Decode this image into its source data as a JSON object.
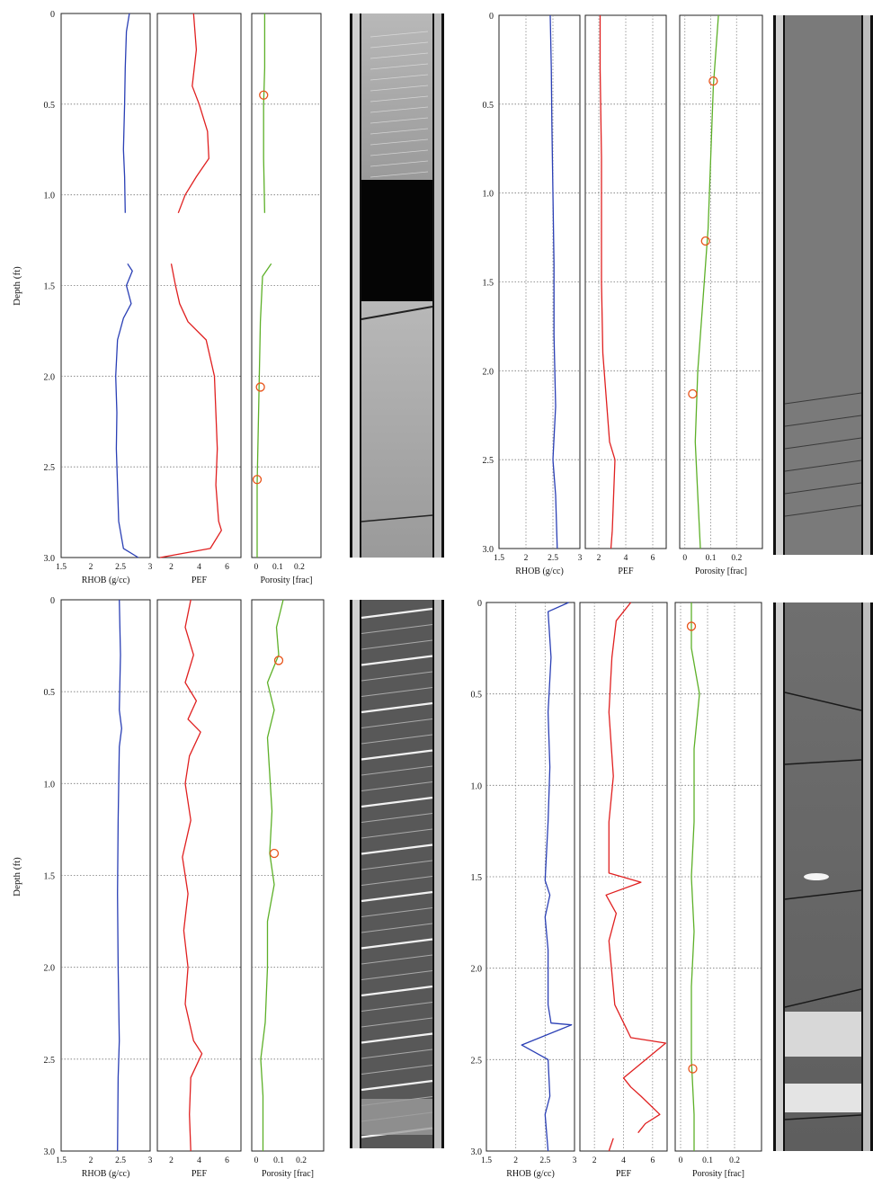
{
  "figure": {
    "panels": 4
  },
  "chart_data": [
    {
      "type": "line",
      "panel": "top-left",
      "ylabel": "Depth (ft)",
      "depth_ticks": [
        "0",
        "0.5",
        "1.0",
        "1.5",
        "2.0",
        "2.5",
        "3.0"
      ],
      "ylim": [
        0,
        3.0
      ],
      "grid": "dotted horizontal at 0.5 ft",
      "tracks": [
        {
          "name": "RHOB (g/cc)",
          "color": "#2a3fb5",
          "xlim": [
            1.5,
            3
          ],
          "ticks": [
            "1.5",
            "2",
            "2.5",
            "3"
          ],
          "segments": [
            [
              [
                2.65,
                0
              ],
              [
                2.6,
                0.1
              ],
              [
                2.58,
                0.3
              ],
              [
                2.57,
                0.5
              ],
              [
                2.55,
                0.75
              ],
              [
                2.57,
                0.9
              ],
              [
                2.58,
                1.1
              ]
            ],
            [
              [
                2.62,
                1.38
              ],
              [
                2.7,
                1.42
              ],
              [
                2.6,
                1.5
              ],
              [
                2.68,
                1.6
              ],
              [
                2.55,
                1.68
              ],
              [
                2.45,
                1.8
              ],
              [
                2.42,
                2.0
              ],
              [
                2.44,
                2.2
              ],
              [
                2.43,
                2.4
              ],
              [
                2.45,
                2.6
              ],
              [
                2.47,
                2.8
              ],
              [
                2.55,
                2.95
              ],
              [
                2.8,
                3.0
              ]
            ]
          ]
        },
        {
          "name": "PEF",
          "color": "#e02020",
          "xlim": [
            1,
            7
          ],
          "ticks": [
            "2",
            "4",
            "6"
          ],
          "segments": [
            [
              [
                3.6,
                0
              ],
              [
                3.8,
                0.2
              ],
              [
                3.5,
                0.4
              ],
              [
                4.0,
                0.5
              ],
              [
                4.6,
                0.65
              ],
              [
                4.7,
                0.8
              ],
              [
                3.8,
                0.9
              ],
              [
                3.0,
                1.0
              ],
              [
                2.5,
                1.1
              ]
            ],
            [
              [
                2.0,
                1.38
              ],
              [
                2.3,
                1.5
              ],
              [
                2.6,
                1.6
              ],
              [
                3.2,
                1.7
              ],
              [
                4.5,
                1.8
              ],
              [
                5.1,
                2.0
              ],
              [
                5.2,
                2.2
              ],
              [
                5.3,
                2.4
              ],
              [
                5.2,
                2.6
              ],
              [
                5.4,
                2.8
              ],
              [
                5.6,
                2.85
              ],
              [
                4.8,
                2.95
              ],
              [
                1.2,
                3.0
              ]
            ]
          ]
        },
        {
          "name": "Porosity [frac]",
          "color": "#5db028",
          "xlim": [
            -0.02,
            0.3
          ],
          "ticks": [
            "0",
            "0.1",
            "0.2"
          ],
          "segments": [
            [
              [
                0.04,
                0
              ],
              [
                0.04,
                0.3
              ],
              [
                0.035,
                0.5
              ],
              [
                0.035,
                0.8
              ],
              [
                0.04,
                1.1
              ]
            ],
            [
              [
                0.07,
                1.38
              ],
              [
                0.03,
                1.45
              ],
              [
                0.02,
                1.7
              ],
              [
                0.015,
                2.0
              ],
              [
                0.01,
                2.3
              ],
              [
                0.005,
                2.6
              ],
              [
                0.005,
                3.0
              ]
            ]
          ],
          "markers": [
            [
              0.035,
              0.45
            ],
            [
              0.02,
              2.06
            ],
            [
              0.005,
              2.57
            ]
          ]
        }
      ]
    },
    {
      "type": "line",
      "panel": "top-right",
      "ylabel": "",
      "depth_ticks": [
        "0",
        "0.5",
        "1.0",
        "1.5",
        "2.0",
        "2.5",
        "3.0"
      ],
      "ylim": [
        0,
        3.0
      ],
      "grid": "dotted horizontal at 0.5 ft and vertical",
      "tracks": [
        {
          "name": "RHOB (g/cc)",
          "color": "#2a3fb5",
          "xlim": [
            1.5,
            3
          ],
          "ticks": [
            "1.5",
            "2",
            "2.5",
            "3"
          ],
          "segments": [
            [
              [
                2.45,
                0
              ],
              [
                2.47,
                0.3
              ],
              [
                2.48,
                0.6
              ],
              [
                2.5,
                1.0
              ],
              [
                2.52,
                1.4
              ],
              [
                2.52,
                1.8
              ],
              [
                2.55,
                2.2
              ],
              [
                2.5,
                2.5
              ],
              [
                2.55,
                2.7
              ],
              [
                2.58,
                3.0
              ]
            ]
          ]
        },
        {
          "name": "PEF",
          "color": "#e02020",
          "xlim": [
            1,
            7
          ],
          "ticks": [
            "2",
            "4",
            "6"
          ],
          "segments": [
            [
              [
                2.1,
                0
              ],
              [
                2.1,
                0.3
              ],
              [
                2.2,
                0.8
              ],
              [
                2.2,
                1.5
              ],
              [
                2.3,
                1.9
              ],
              [
                2.6,
                2.2
              ],
              [
                2.8,
                2.4
              ],
              [
                3.2,
                2.5
              ],
              [
                3.1,
                2.7
              ],
              [
                3.0,
                2.9
              ],
              [
                2.9,
                3.0
              ]
            ]
          ]
        },
        {
          "name": "Porosity [frac]",
          "color": "#5db028",
          "xlim": [
            -0.02,
            0.3
          ],
          "ticks": [
            "0",
            "0.1",
            "0.2"
          ],
          "segments": [
            [
              [
                0.13,
                0
              ],
              [
                0.11,
                0.4
              ],
              [
                0.1,
                0.8
              ],
              [
                0.09,
                1.2
              ],
              [
                0.07,
                1.6
              ],
              [
                0.05,
                2.0
              ],
              [
                0.04,
                2.4
              ],
              [
                0.05,
                2.7
              ],
              [
                0.06,
                3.0
              ]
            ]
          ],
          "markers": [
            [
              0.11,
              0.37
            ],
            [
              0.08,
              1.27
            ],
            [
              0.03,
              2.13
            ]
          ]
        }
      ]
    },
    {
      "type": "line",
      "panel": "bottom-left",
      "ylabel": "Depth (ft)",
      "depth_ticks": [
        "0",
        "0.5",
        "1.0",
        "1.5",
        "2.0",
        "2.5",
        "3.0"
      ],
      "ylim": [
        0,
        3.0
      ],
      "grid": "dotted horizontal at 0.5 ft",
      "tracks": [
        {
          "name": "RHOB (g/cc)",
          "color": "#2a3fb5",
          "xlim": [
            1.5,
            3
          ],
          "ticks": [
            "1.5",
            "2",
            "2.5",
            "3"
          ],
          "segments": [
            [
              [
                2.48,
                0
              ],
              [
                2.5,
                0.3
              ],
              [
                2.48,
                0.6
              ],
              [
                2.52,
                0.7
              ],
              [
                2.48,
                0.8
              ],
              [
                2.46,
                1.2
              ],
              [
                2.45,
                1.6
              ],
              [
                2.46,
                2.0
              ],
              [
                2.48,
                2.4
              ],
              [
                2.46,
                2.6
              ],
              [
                2.45,
                3.0
              ]
            ]
          ]
        },
        {
          "name": "PEF",
          "color": "#e02020",
          "xlim": [
            1,
            7
          ],
          "ticks": [
            "2",
            "4",
            "6"
          ],
          "segments": [
            [
              [
                3.4,
                0
              ],
              [
                3.0,
                0.15
              ],
              [
                3.6,
                0.3
              ],
              [
                3.0,
                0.45
              ],
              [
                3.8,
                0.55
              ],
              [
                3.2,
                0.65
              ],
              [
                4.1,
                0.72
              ],
              [
                3.3,
                0.85
              ],
              [
                3.0,
                1.0
              ],
              [
                3.4,
                1.2
              ],
              [
                2.8,
                1.4
              ],
              [
                3.2,
                1.6
              ],
              [
                2.9,
                1.8
              ],
              [
                3.2,
                2.0
              ],
              [
                3.0,
                2.2
              ],
              [
                3.6,
                2.4
              ],
              [
                4.2,
                2.47
              ],
              [
                3.4,
                2.6
              ],
              [
                3.3,
                2.8
              ],
              [
                3.4,
                3.0
              ]
            ]
          ]
        },
        {
          "name": "Porosity [frac]",
          "color": "#5db028",
          "xlim": [
            -0.02,
            0.3
          ],
          "ticks": [
            "0",
            "0.1",
            "0.2"
          ],
          "segments": [
            [
              [
                0.12,
                0
              ],
              [
                0.09,
                0.15
              ],
              [
                0.1,
                0.3
              ],
              [
                0.05,
                0.45
              ],
              [
                0.08,
                0.6
              ],
              [
                0.05,
                0.75
              ],
              [
                0.06,
                0.95
              ],
              [
                0.07,
                1.15
              ],
              [
                0.06,
                1.38
              ],
              [
                0.08,
                1.55
              ],
              [
                0.05,
                1.75
              ],
              [
                0.05,
                2.0
              ],
              [
                0.04,
                2.3
              ],
              [
                0.02,
                2.5
              ],
              [
                0.03,
                2.7
              ],
              [
                0.03,
                3.0
              ]
            ]
          ],
          "markers": [
            [
              0.1,
              0.33
            ],
            [
              0.08,
              1.38
            ]
          ]
        }
      ]
    },
    {
      "type": "line",
      "panel": "bottom-right",
      "ylabel": "",
      "depth_ticks": [
        "0",
        "0.5",
        "1.0",
        "1.5",
        "2.0",
        "2.5",
        "3.0"
      ],
      "ylim": [
        0,
        3.0
      ],
      "grid": "dotted horizontal at 0.5 ft and vertical",
      "tracks": [
        {
          "name": "RHOB (g/cc)",
          "color": "#2a3fb5",
          "xlim": [
            1.5,
            3
          ],
          "ticks": [
            "1.5",
            "2",
            "2.5",
            "3"
          ],
          "segments": [
            [
              [
                2.9,
                0
              ],
              [
                2.55,
                0.05
              ],
              [
                2.6,
                0.3
              ],
              [
                2.55,
                0.6
              ],
              [
                2.58,
                0.9
              ],
              [
                2.55,
                1.2
              ],
              [
                2.5,
                1.52
              ],
              [
                2.58,
                1.6
              ],
              [
                2.5,
                1.72
              ],
              [
                2.55,
                1.9
              ],
              [
                2.55,
                2.2
              ],
              [
                2.6,
                2.3
              ],
              [
                2.95,
                2.31
              ],
              [
                2.1,
                2.42
              ],
              [
                2.55,
                2.5
              ],
              [
                2.58,
                2.7
              ],
              [
                2.5,
                2.8
              ],
              [
                2.55,
                3.0
              ]
            ]
          ]
        },
        {
          "name": "PEF",
          "color": "#e02020",
          "xlim": [
            1,
            7
          ],
          "ticks": [
            "2",
            "4",
            "6"
          ],
          "segments": [
            [
              [
                4.5,
                0
              ],
              [
                3.5,
                0.1
              ],
              [
                3.2,
                0.3
              ],
              [
                3.0,
                0.6
              ],
              [
                3.3,
                0.95
              ],
              [
                3.0,
                1.2
              ],
              [
                3.0,
                1.48
              ],
              [
                5.2,
                1.53
              ],
              [
                2.8,
                1.6
              ],
              [
                3.5,
                1.7
              ],
              [
                3.0,
                1.85
              ],
              [
                3.4,
                2.2
              ],
              [
                4.5,
                2.38
              ],
              [
                6.9,
                2.41
              ],
              [
                4.0,
                2.6
              ],
              [
                4.5,
                2.65
              ],
              [
                5.2,
                2.7
              ],
              [
                6.5,
                2.8
              ],
              [
                5.5,
                2.85
              ],
              [
                5.0,
                2.9
              ]
            ],
            [
              [
                3.3,
                2.93
              ],
              [
                3.0,
                3.0
              ]
            ]
          ]
        },
        {
          "name": "Porosity [frac]",
          "color": "#5db028",
          "xlim": [
            -0.02,
            0.3
          ],
          "ticks": [
            "0",
            "0.1",
            "0.2"
          ],
          "segments": [
            [
              [
                0.04,
                0
              ],
              [
                0.04,
                0.25
              ],
              [
                0.07,
                0.5
              ],
              [
                0.05,
                0.8
              ],
              [
                0.05,
                1.2
              ],
              [
                0.04,
                1.5
              ],
              [
                0.05,
                1.8
              ],
              [
                0.04,
                2.1
              ],
              [
                0.04,
                2.5
              ],
              [
                0.05,
                2.8
              ],
              [
                0.05,
                3.0
              ]
            ]
          ],
          "markers": [
            [
              0.04,
              0.13
            ],
            [
              0.045,
              2.55
            ]
          ]
        }
      ]
    }
  ]
}
